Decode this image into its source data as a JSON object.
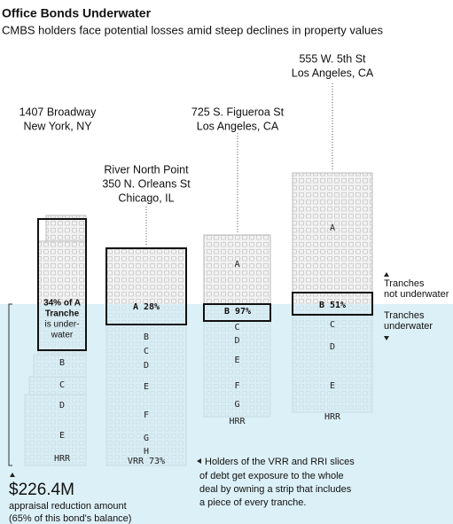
{
  "header": {
    "title": "Office Bonds Underwater",
    "subtitle": "CMBS holders face potential losses amid steep declines in property values"
  },
  "buildings": [
    {
      "label": [
        "1407 Broadway",
        "New York, NY"
      ],
      "highlight": [
        "34% of A",
        "Tranche",
        "is under-",
        "water"
      ],
      "tranches": [
        "B",
        "C",
        "D",
        "E",
        "HRR"
      ]
    },
    {
      "label": [
        "River North Point",
        "350 N. Orleans St",
        "Chicago, IL"
      ],
      "highlight": [
        "A 28%"
      ],
      "tranches": [
        "B",
        "C",
        "D",
        "E",
        "F",
        "G",
        "H",
        "VRR 73%"
      ]
    },
    {
      "label": [
        "725 S. Figueroa St",
        "Los Angeles, CA"
      ],
      "above": [
        "A"
      ],
      "highlight": [
        "B 97%"
      ],
      "tranches": [
        "C",
        "D",
        "E",
        "F",
        "G",
        "HRR"
      ]
    },
    {
      "label": [
        "555 W. 5th St",
        "Los Angeles, CA"
      ],
      "above": [
        "A"
      ],
      "highlight": [
        "B 51%"
      ],
      "tranches": [
        "C",
        "D",
        "E",
        "HRR"
      ]
    }
  ],
  "notes": {
    "above": [
      "Tranches",
      "not underwater"
    ],
    "below": [
      "Tranches",
      "underwater"
    ],
    "holders": [
      "Holders of the VRR and RRI slices",
      "of debt get exposure to the whole",
      "deal by owning a strip that includes",
      "a piece of every tranche."
    ]
  },
  "callout": {
    "amount": "$226.4M",
    "lines": [
      "appraisal reduction amount",
      "(65% of this bond's balance)"
    ]
  }
}
